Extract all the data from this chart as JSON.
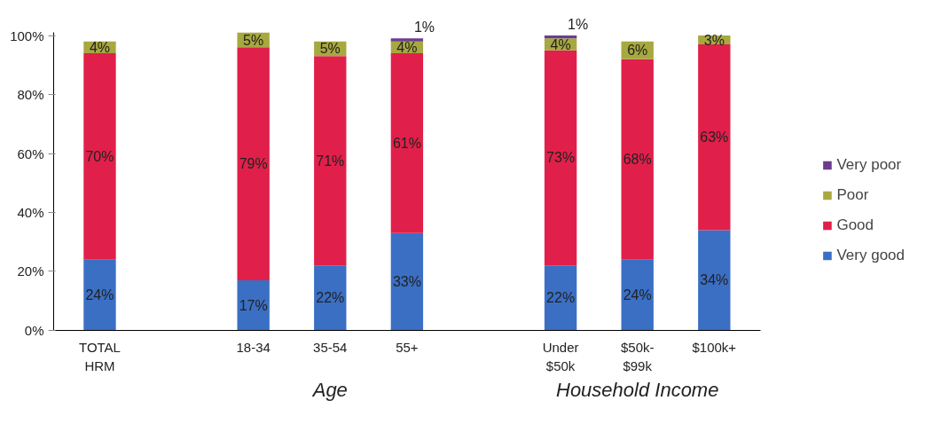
{
  "chart_data": {
    "type": "bar",
    "stacked": true,
    "categories": [
      "TOTAL\nHRM",
      null,
      "18-34",
      "35-54",
      "55+",
      null,
      "Under\n$50k",
      "$50k-\n$99k",
      "$100k+"
    ],
    "series": [
      {
        "name": "Very good",
        "color": "#3a6fc4",
        "values": [
          24,
          null,
          17,
          22,
          33,
          null,
          22,
          24,
          34
        ],
        "value_labels": [
          "24%",
          null,
          "17%",
          "22%",
          "33%",
          null,
          "22%",
          "24%",
          "34%"
        ]
      },
      {
        "name": "Good",
        "color": "#e0204a",
        "values": [
          70,
          null,
          79,
          71,
          61,
          null,
          73,
          68,
          63
        ],
        "value_labels": [
          "70%",
          null,
          "79%",
          "71%",
          "61%",
          null,
          "73%",
          "68%",
          "63%"
        ]
      },
      {
        "name": "Poor",
        "color": "#a8a840",
        "values": [
          4,
          null,
          5,
          5,
          4,
          null,
          4,
          6,
          3
        ],
        "value_labels": [
          "4%",
          null,
          "5%",
          "5%",
          "4%",
          null,
          "4%",
          "6%",
          "3%"
        ]
      },
      {
        "name": "Very poor",
        "color": "#6a3d8f",
        "values": [
          null,
          null,
          null,
          null,
          1,
          null,
          1,
          null,
          null
        ],
        "value_labels": [
          null,
          null,
          null,
          null,
          "1%",
          null,
          "1%",
          null,
          null
        ]
      }
    ],
    "ylim": [
      0,
      101
    ],
    "yticks": [
      {
        "value": 0,
        "label": "0%"
      },
      {
        "value": 20,
        "label": "20%"
      },
      {
        "value": 40,
        "label": "40%"
      },
      {
        "value": 60,
        "label": "60%"
      },
      {
        "value": 80,
        "label": "80%"
      },
      {
        "value": 100,
        "label": "100%"
      }
    ],
    "grid": false,
    "legend": "right",
    "annotations": [
      "Age",
      "Household Income"
    ]
  }
}
